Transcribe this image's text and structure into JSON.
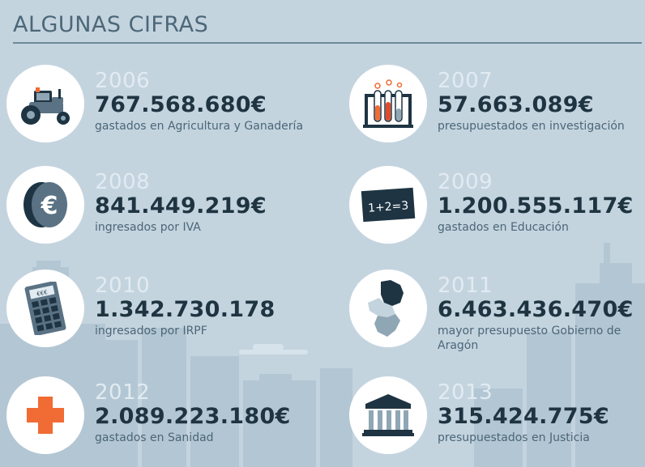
{
  "header": {
    "title": "ALGUNAS CIFRAS"
  },
  "items": [
    {
      "year": "2006",
      "amount": "767.568.680€",
      "description": "gastados en Agricultura y Ganadería",
      "icon": "tractor-icon"
    },
    {
      "year": "2007",
      "amount": "57.663.089€",
      "description": "presupuestados en investigación",
      "icon": "test-tubes-icon"
    },
    {
      "year": "2008",
      "amount": "841.449.219€",
      "description": "ingresados por IVA",
      "icon": "euro-coin-icon"
    },
    {
      "year": "2009",
      "amount": "1.200.555.117€",
      "description": "gastados en Educación",
      "icon": "chalkboard-icon",
      "chalkboard_text": "1+2=3"
    },
    {
      "year": "2010",
      "amount": "1.342.730.178",
      "description": "ingresados por IRPF",
      "icon": "calculator-icon",
      "calculator_display": "€€€"
    },
    {
      "year": "2011",
      "amount": "6.463.436.470€",
      "description": "mayor presupuesto Gobierno de Aragón",
      "icon": "aragon-map-icon"
    },
    {
      "year": "2012",
      "amount": "2.089.223.180€",
      "description": "gastados en Sanidad",
      "icon": "medical-cross-icon"
    },
    {
      "year": "2013",
      "amount": "315.424.775€",
      "description": "presupuestados en Justicia",
      "icon": "courthouse-icon"
    }
  ],
  "colors": {
    "background": "#c4d4df",
    "skyline": "#b0c3d0",
    "title": "#4c6778",
    "year": "#e1ebf1",
    "amount": "#1f3441",
    "description": "#4b6677",
    "accent_orange": "#f16b34"
  }
}
